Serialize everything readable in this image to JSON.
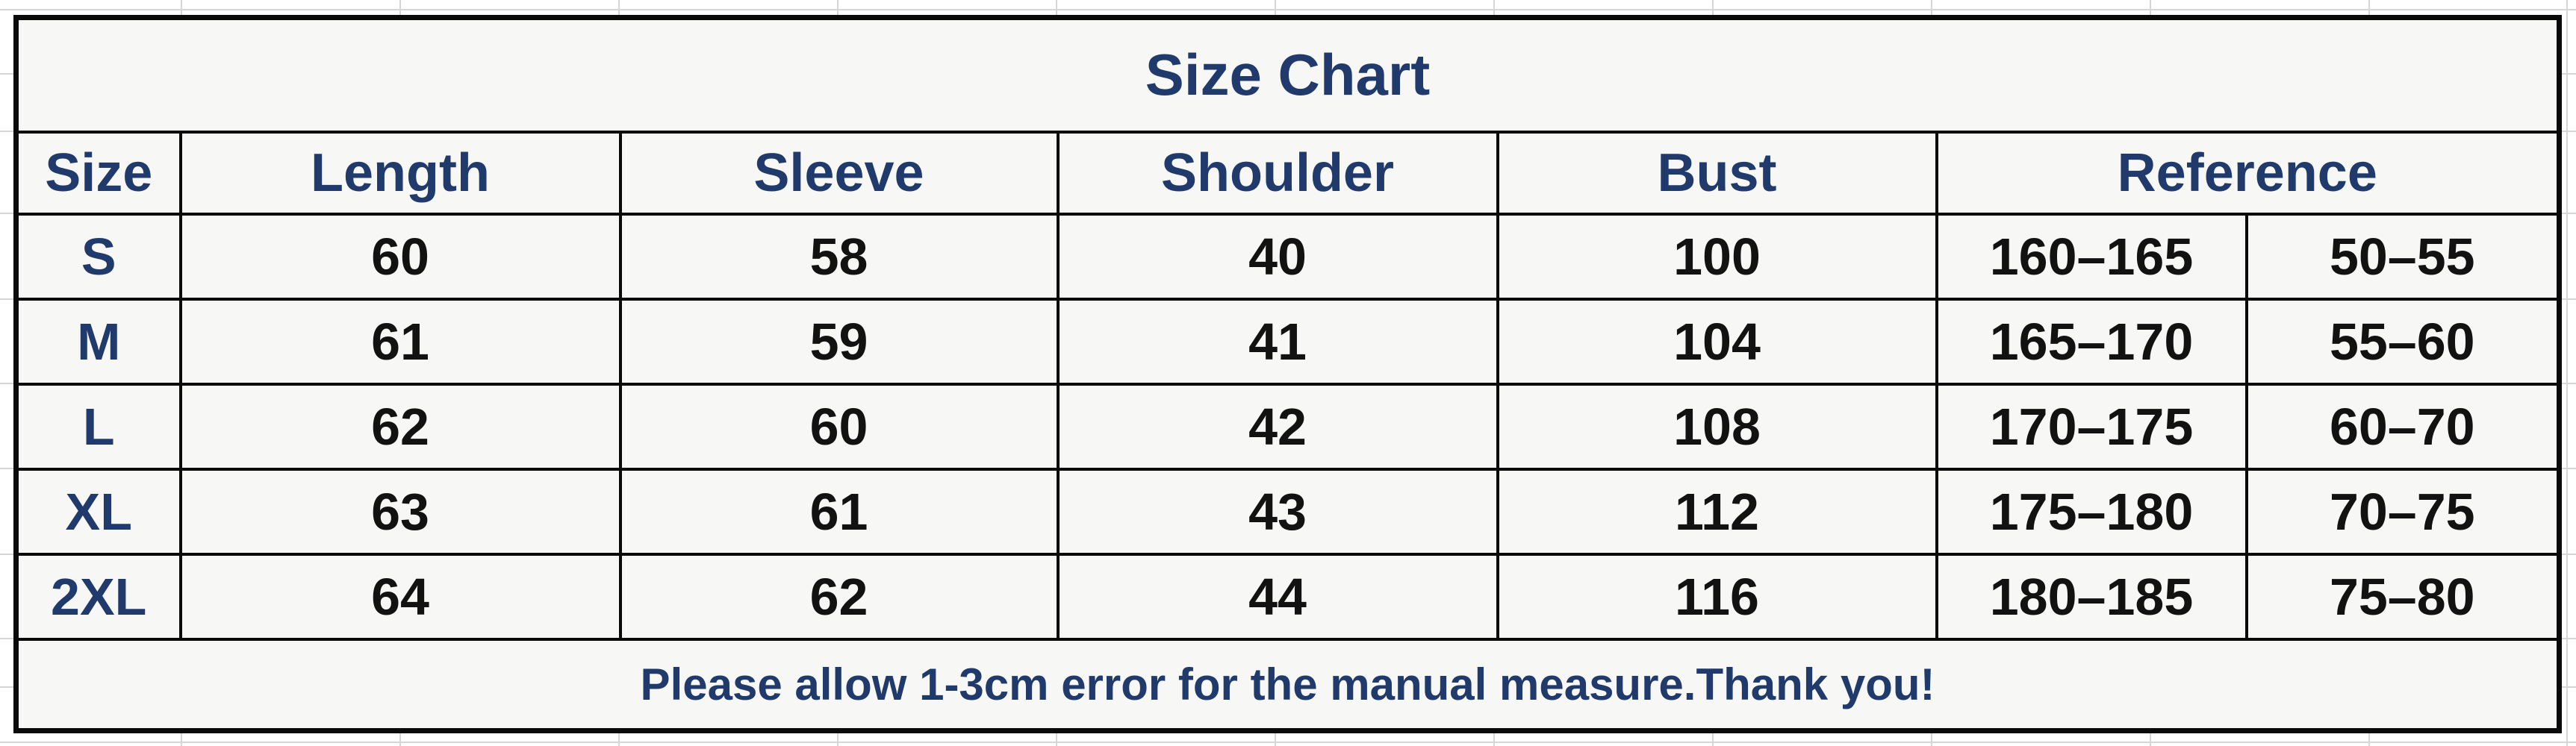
{
  "title": "Size Chart",
  "columns": {
    "size": "Size",
    "length": "Length",
    "sleeve": "Sleeve",
    "shoulder": "Shoulder",
    "bust": "Bust",
    "reference": "Reference"
  },
  "rows": [
    {
      "size": "S",
      "length": "60",
      "sleeve": "58",
      "shoulder": "40",
      "bust": "100",
      "ref_height": "160–165",
      "ref_weight": "50–55"
    },
    {
      "size": "M",
      "length": "61",
      "sleeve": "59",
      "shoulder": "41",
      "bust": "104",
      "ref_height": "165–170",
      "ref_weight": "55–60"
    },
    {
      "size": "L",
      "length": "62",
      "sleeve": "60",
      "shoulder": "42",
      "bust": "108",
      "ref_height": "170–175",
      "ref_weight": "60–70"
    },
    {
      "size": "XL",
      "length": "63",
      "sleeve": "61",
      "shoulder": "43",
      "bust": "112",
      "ref_height": "175–180",
      "ref_weight": "70–75"
    },
    {
      "size": "2XL",
      "length": "64",
      "sleeve": "62",
      "shoulder": "44",
      "bust": "116",
      "ref_height": "180–185",
      "ref_weight": "75–80"
    }
  ],
  "footer": {
    "note": "Please allow 1-3cm error for the manual measure.Thank you!"
  },
  "colors": {
    "heading_text": "#1f3a6b",
    "value_text": "#121212",
    "border": "#0a0a0a",
    "cell_background": "#f7f7f5",
    "page_background": "#ffffff",
    "gridline": "#d6d6d6"
  },
  "chart_data": {
    "type": "table",
    "title": "Size Chart",
    "columns": [
      "Size",
      "Length",
      "Sleeve",
      "Shoulder",
      "Bust",
      "Reference (height)",
      "Reference (weight)"
    ],
    "rows": [
      [
        "S",
        "60",
        "58",
        "40",
        "100",
        "160–165",
        "50–55"
      ],
      [
        "M",
        "61",
        "59",
        "41",
        "104",
        "165–170",
        "55–60"
      ],
      [
        "L",
        "62",
        "60",
        "42",
        "108",
        "170–175",
        "60–70"
      ],
      [
        "XL",
        "63",
        "61",
        "43",
        "112",
        "175–180",
        "70–75"
      ],
      [
        "2XL",
        "64",
        "62",
        "44",
        "116",
        "180–185",
        "75–80"
      ]
    ],
    "footnote": "Please allow 1-3cm error for the manual measure.Thank you!"
  }
}
